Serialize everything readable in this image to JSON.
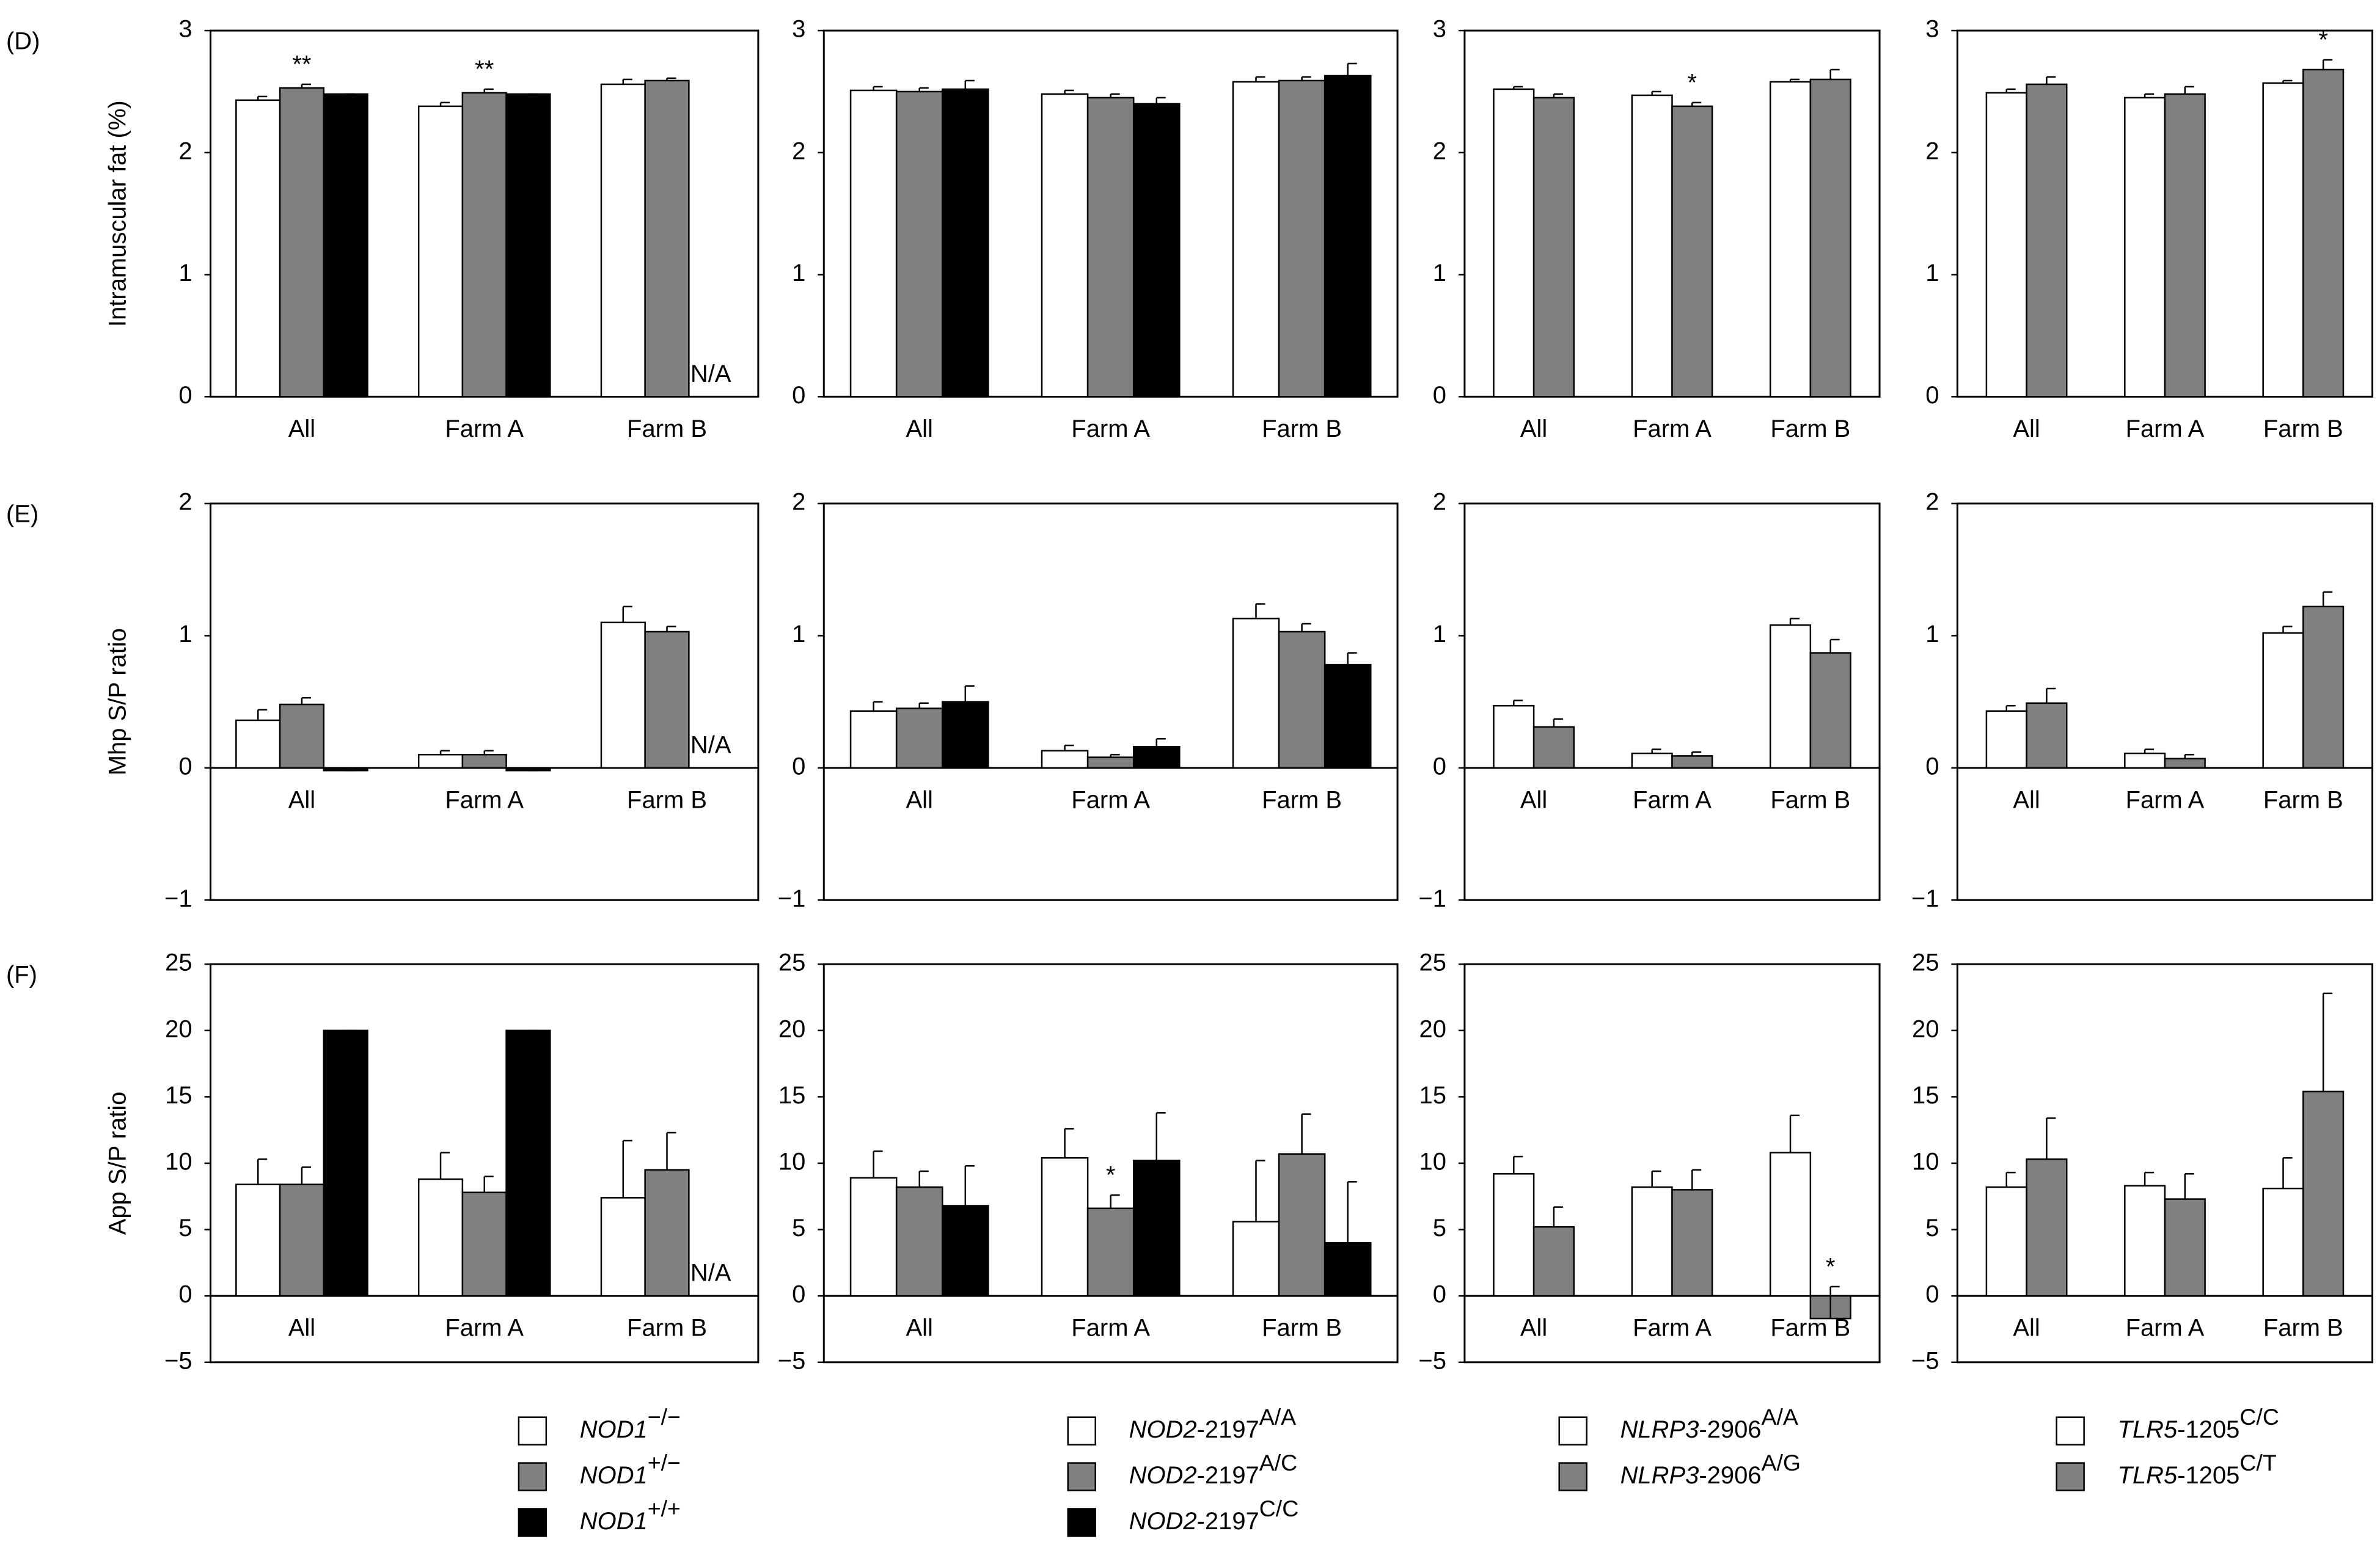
{
  "chart_data": [
    {
      "type": "bar",
      "panel_label": "(D)",
      "ylabel": "Intramuscular  fat (%)",
      "categories": [
        "All",
        "Farm A",
        "Farm B"
      ],
      "ylim": [
        0,
        3
      ],
      "yticks": [
        0,
        1,
        2,
        3
      ],
      "series": [
        {
          "color": "#ffffff",
          "values": [
            2.43,
            2.38,
            2.56
          ],
          "errors": [
            0.03,
            0.03,
            0.04
          ]
        },
        {
          "color": "#808080",
          "values": [
            2.53,
            2.49,
            2.59
          ],
          "errors": [
            0.03,
            0.03,
            0.02
          ],
          "annotations": [
            "**",
            "**",
            null
          ]
        },
        {
          "color": "#000000",
          "values": [
            2.48,
            2.48,
            null
          ],
          "errors": [
            0,
            0,
            null
          ],
          "annotations": [
            null,
            null,
            "N/A"
          ]
        }
      ]
    },
    {
      "type": "bar",
      "categories": [
        "All",
        "Farm A",
        "Farm B"
      ],
      "ylim": [
        0,
        3
      ],
      "yticks": [
        0,
        1,
        2,
        3
      ],
      "series": [
        {
          "color": "#ffffff",
          "values": [
            2.51,
            2.48,
            2.58
          ],
          "errors": [
            0.03,
            0.03,
            0.04
          ]
        },
        {
          "color": "#808080",
          "values": [
            2.5,
            2.45,
            2.59
          ],
          "errors": [
            0.03,
            0.03,
            0.03
          ]
        },
        {
          "color": "#000000",
          "values": [
            2.52,
            2.4,
            2.63
          ],
          "errors": [
            0.07,
            0.05,
            0.1
          ]
        }
      ]
    },
    {
      "type": "bar",
      "categories": [
        "All",
        "Farm A",
        "Farm B"
      ],
      "ylim": [
        0,
        3
      ],
      "yticks": [
        0,
        1,
        2,
        3
      ],
      "series": [
        {
          "color": "#ffffff",
          "values": [
            2.52,
            2.47,
            2.58
          ],
          "errors": [
            0.02,
            0.03,
            0.02
          ]
        },
        {
          "color": "#808080",
          "values": [
            2.45,
            2.38,
            2.6
          ],
          "errors": [
            0.03,
            0.03,
            0.08
          ],
          "annotations": [
            null,
            "*",
            null
          ]
        }
      ]
    },
    {
      "type": "bar",
      "categories": [
        "All",
        "Farm A",
        "Farm B"
      ],
      "ylim": [
        0,
        3
      ],
      "yticks": [
        0,
        1,
        2,
        3
      ],
      "series": [
        {
          "color": "#ffffff",
          "values": [
            2.49,
            2.45,
            2.57
          ],
          "errors": [
            0.03,
            0.03,
            0.02
          ]
        },
        {
          "color": "#808080",
          "values": [
            2.56,
            2.48,
            2.68
          ],
          "errors": [
            0.06,
            0.06,
            0.08
          ],
          "annotations": [
            null,
            null,
            "*"
          ]
        }
      ]
    },
    {
      "type": "bar",
      "panel_label": "(E)",
      "ylabel": "Mhp S/P ratio",
      "categories": [
        "All",
        "Farm A",
        "Farm B"
      ],
      "ylim": [
        -1,
        2
      ],
      "yticks": [
        {
          "value": -1,
          "label": "−1"
        },
        0,
        1,
        2
      ],
      "series": [
        {
          "color": "#ffffff",
          "values": [
            0.36,
            0.1,
            1.1
          ],
          "errors": [
            0.08,
            0.03,
            0.12
          ]
        },
        {
          "color": "#808080",
          "values": [
            0.48,
            0.1,
            1.03
          ],
          "errors": [
            0.05,
            0.03,
            0.04
          ]
        },
        {
          "color": "#000000",
          "values": [
            -0.02,
            -0.02,
            null
          ],
          "errors": [
            0,
            0,
            null
          ],
          "annotations": [
            null,
            null,
            "N/A"
          ]
        }
      ]
    },
    {
      "type": "bar",
      "categories": [
        "All",
        "Farm A",
        "Farm B"
      ],
      "ylim": [
        -1,
        2
      ],
      "yticks": [
        {
          "value": -1,
          "label": "−1"
        },
        0,
        1,
        2
      ],
      "series": [
        {
          "color": "#ffffff",
          "values": [
            0.43,
            0.13,
            1.13
          ],
          "errors": [
            0.07,
            0.04,
            0.11
          ]
        },
        {
          "color": "#808080",
          "values": [
            0.45,
            0.08,
            1.03
          ],
          "errors": [
            0.04,
            0.02,
            0.06
          ]
        },
        {
          "color": "#000000",
          "values": [
            0.5,
            0.16,
            0.78
          ],
          "errors": [
            0.12,
            0.06,
            0.09
          ]
        }
      ]
    },
    {
      "type": "bar",
      "categories": [
        "All",
        "Farm A",
        "Farm B"
      ],
      "ylim": [
        -1,
        2
      ],
      "yticks": [
        {
          "value": -1,
          "label": "−1"
        },
        0,
        1,
        2
      ],
      "series": [
        {
          "color": "#ffffff",
          "values": [
            0.47,
            0.11,
            1.08
          ],
          "errors": [
            0.04,
            0.03,
            0.05
          ]
        },
        {
          "color": "#808080",
          "values": [
            0.31,
            0.09,
            0.87
          ],
          "errors": [
            0.06,
            0.03,
            0.1
          ]
        }
      ]
    },
    {
      "type": "bar",
      "categories": [
        "All",
        "Farm A",
        "Farm B"
      ],
      "ylim": [
        -1,
        2
      ],
      "yticks": [
        {
          "value": -1,
          "label": "−1"
        },
        0,
        1,
        2
      ],
      "series": [
        {
          "color": "#ffffff",
          "values": [
            0.43,
            0.11,
            1.02
          ],
          "errors": [
            0.04,
            0.03,
            0.05
          ]
        },
        {
          "color": "#808080",
          "values": [
            0.49,
            0.07,
            1.22
          ],
          "errors": [
            0.11,
            0.03,
            0.11
          ]
        }
      ]
    },
    {
      "type": "bar",
      "panel_label": "(F)",
      "ylabel": "App S/P ratio",
      "categories": [
        "All",
        "Farm A",
        "Farm B"
      ],
      "ylim": [
        -5,
        25
      ],
      "yticks": [
        {
          "value": -5,
          "label": "−5"
        },
        0,
        5,
        10,
        15,
        20,
        25
      ],
      "series": [
        {
          "name": "NOD1−/−",
          "color": "#ffffff",
          "values": [
            8.4,
            8.8,
            7.4
          ],
          "errors": [
            1.9,
            2.0,
            4.3
          ]
        },
        {
          "name": "NOD1+/−",
          "color": "#808080",
          "values": [
            8.4,
            7.8,
            9.5
          ],
          "errors": [
            1.3,
            1.2,
            2.8
          ]
        },
        {
          "name": "NOD1+/+",
          "color": "#000000",
          "values": [
            20,
            20,
            null
          ],
          "errors": [
            0,
            0,
            null
          ],
          "annotations": [
            null,
            null,
            "N/A"
          ]
        }
      ]
    },
    {
      "type": "bar",
      "categories": [
        "All",
        "Farm A",
        "Farm B"
      ],
      "ylim": [
        -5,
        25
      ],
      "yticks": [
        {
          "value": -5,
          "label": "−5"
        },
        0,
        5,
        10,
        15,
        20,
        25
      ],
      "series": [
        {
          "name": "NOD2-2197A/A",
          "color": "#ffffff",
          "values": [
            8.9,
            10.4,
            5.6
          ],
          "errors": [
            2.0,
            2.2,
            4.6
          ]
        },
        {
          "name": "NOD2-2197A/C",
          "color": "#808080",
          "values": [
            8.2,
            6.6,
            10.7
          ],
          "errors": [
            1.2,
            1.0,
            3.0
          ],
          "annotations": [
            null,
            "*",
            null
          ]
        },
        {
          "name": "NOD2-2197C/C",
          "color": "#000000",
          "values": [
            6.8,
            10.2,
            4.0
          ],
          "errors": [
            3.0,
            3.6,
            4.6
          ]
        }
      ]
    },
    {
      "type": "bar",
      "categories": [
        "All",
        "Farm A",
        "Farm B"
      ],
      "ylim": [
        -5,
        25
      ],
      "yticks": [
        {
          "value": -5,
          "label": "−5"
        },
        0,
        5,
        10,
        15,
        20,
        25
      ],
      "series": [
        {
          "name": "NLRP3-2906A/A",
          "color": "#ffffff",
          "values": [
            9.2,
            8.2,
            10.8
          ],
          "errors": [
            1.3,
            1.2,
            2.8
          ]
        },
        {
          "name": "NLRP3-2906A/G",
          "color": "#808080",
          "values": [
            5.2,
            8.0,
            -1.7
          ],
          "errors": [
            1.5,
            1.5,
            2.4
          ],
          "annotations": [
            null,
            null,
            "*"
          ]
        }
      ]
    },
    {
      "type": "bar",
      "categories": [
        "All",
        "Farm A",
        "Farm B"
      ],
      "ylim": [
        -5,
        25
      ],
      "yticks": [
        {
          "value": -5,
          "label": "−5"
        },
        0,
        5,
        10,
        15,
        20,
        25
      ],
      "series": [
        {
          "name": "TLR5-1205C/C",
          "color": "#ffffff",
          "values": [
            8.2,
            8.3,
            8.1
          ],
          "errors": [
            1.1,
            1.0,
            2.3
          ]
        },
        {
          "name": "TLR5-1205C/T",
          "color": "#808080",
          "values": [
            10.3,
            7.3,
            15.4
          ],
          "errors": [
            3.1,
            1.9,
            7.4
          ]
        }
      ]
    }
  ]
}
